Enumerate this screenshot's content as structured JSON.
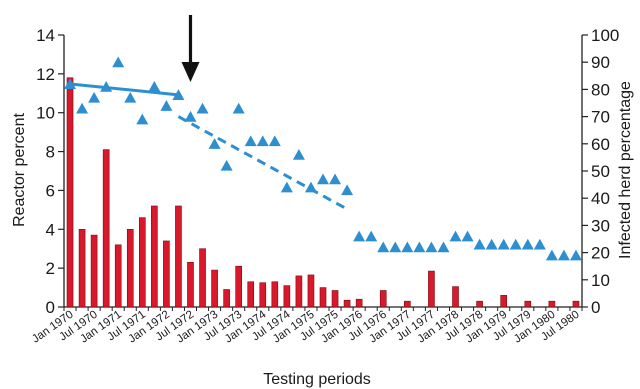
{
  "chart_data": {
    "type": "bar",
    "xlabel": "Testing periods",
    "ylabel_left": "Reactor percent",
    "ylabel_right": "Infected herd percentage",
    "ylim_left": [
      0,
      14
    ],
    "ylim_right": [
      0,
      100
    ],
    "y_ticks_left": [
      "0",
      "2",
      "4",
      "6",
      "8",
      "10",
      "12",
      "14"
    ],
    "y_ticks_right": [
      "0",
      "10",
      "20",
      "30",
      "40",
      "50",
      "60",
      "70",
      "80",
      "90",
      "100"
    ],
    "x_tick_labels": [
      "Jan 1970",
      "Jul 1970",
      "Jan 1971",
      "Jul 1971",
      "Jan 1972",
      "Jul 1972",
      "Jan 1973",
      "Jul 1973",
      "Jan 1974",
      "Jul 1974",
      "Jan 1975",
      "Jul 1975",
      "Jan 1976",
      "Jul 1976",
      "Jan 1977",
      "Jul 1977",
      "Jan 1978",
      "Jul 1978",
      "Jan 1979",
      "Jul 1979",
      "Jan 1980",
      "Jul 1980"
    ],
    "arrow_at": "Jul 1972",
    "series": [
      {
        "type": "bar",
        "axis": "left",
        "color": "#d7192b",
        "values": [
          11.8,
          4.0,
          3.7,
          8.1,
          3.2,
          4.0,
          4.6,
          5.2,
          3.4,
          5.2,
          2.3,
          3.0,
          1.9,
          0.9,
          2.1,
          1.3,
          1.25,
          1.3,
          1.1,
          1.6,
          1.65,
          1.0,
          0.85,
          0.35,
          0.4,
          0,
          0.85,
          0,
          0.3,
          0,
          1.85,
          0,
          1.05,
          0,
          0.3,
          0,
          0.6,
          0,
          0.3,
          0,
          0.3,
          0,
          0.3
        ]
      },
      {
        "type": "scatter",
        "axis": "right",
        "marker": "triangle",
        "color": "#2e8fd0",
        "values": [
          82,
          73,
          77,
          81,
          90,
          77,
          69,
          81,
          74,
          78,
          70,
          73,
          60,
          52,
          73,
          61,
          61,
          61,
          44,
          56,
          44,
          47,
          47,
          43,
          26,
          26,
          22,
          22,
          22,
          22,
          22,
          22,
          26,
          26,
          23,
          23,
          23,
          23,
          23,
          23,
          19,
          19,
          19
        ]
      }
    ],
    "trend_lines": [
      {
        "style": "solid",
        "color": "#2e8fd0",
        "from": [
          0,
          82
        ],
        "to": [
          9,
          78
        ]
      },
      {
        "style": "dashed",
        "color": "#2e8fd0",
        "from": [
          9,
          70
        ],
        "to": [
          23,
          36
        ]
      }
    ]
  }
}
